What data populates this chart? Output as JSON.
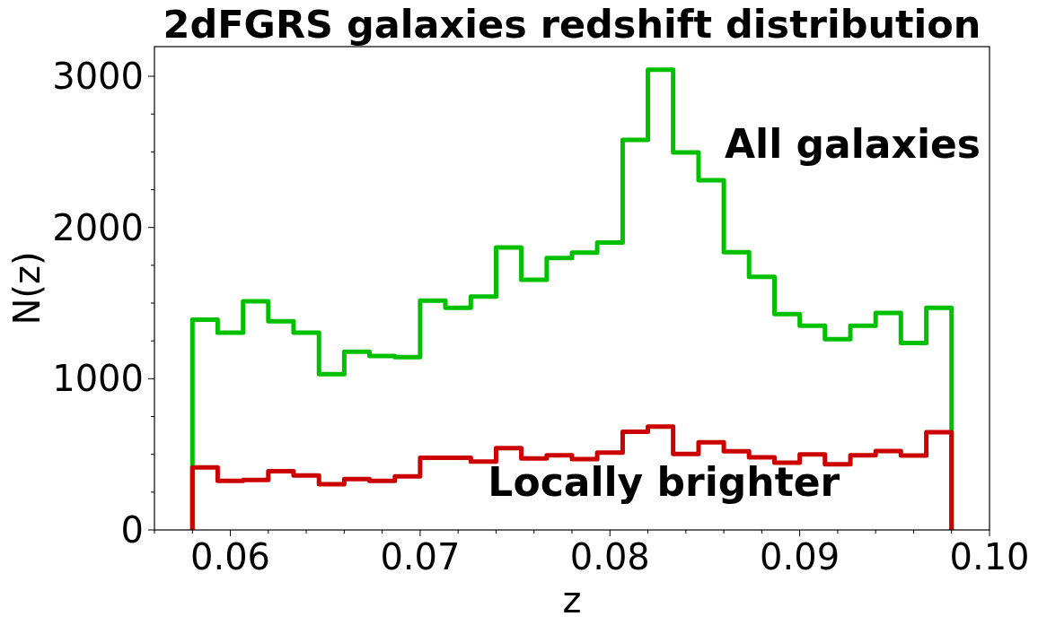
{
  "chart_data": {
    "type": "histogram",
    "title": "2dFGRS galaxies redshift distribution",
    "xlabel": "z",
    "ylabel": "N(z)",
    "bins": [
      0.058,
      0.05933,
      0.06067,
      0.062,
      0.06333,
      0.06467,
      0.066,
      0.06733,
      0.06867,
      0.07,
      0.07133,
      0.07267,
      0.074,
      0.07533,
      0.07667,
      0.078,
      0.07933,
      0.08067,
      0.082,
      0.08333,
      0.08467,
      0.086,
      0.08733,
      0.08867,
      0.09,
      0.09133,
      0.09267,
      0.094,
      0.09533,
      0.09667,
      0.098
    ],
    "series": [
      {
        "name": "All galaxies",
        "color": "#00c000",
        "values": [
          1391,
          1304,
          1512,
          1380,
          1304,
          1030,
          1179,
          1151,
          1143,
          1516,
          1469,
          1543,
          1868,
          1654,
          1798,
          1834,
          1900,
          2580,
          3044,
          2497,
          2313,
          1836,
          1673,
          1427,
          1351,
          1262,
          1351,
          1435,
          1236,
          1469
        ]
      },
      {
        "name": "Locally brighter",
        "color": "#cc0000",
        "values": [
          414,
          325,
          331,
          388,
          360,
          303,
          336,
          325,
          355,
          477,
          477,
          452,
          541,
          473,
          494,
          469,
          511,
          649,
          683,
          503,
          579,
          520,
          480,
          445,
          500,
          435,
          494,
          522,
          492,
          647
        ]
      }
    ],
    "xlim": [
      0.056,
      0.1
    ],
    "xticks": [
      {
        "value": 0.056,
        "label": null
      },
      {
        "value": 0.058,
        "label": null
      },
      {
        "value": 0.06,
        "label": "0.06"
      },
      {
        "value": 0.062,
        "label": null
      },
      {
        "value": 0.064,
        "label": null
      },
      {
        "value": 0.066,
        "label": null
      },
      {
        "value": 0.068,
        "label": null
      },
      {
        "value": 0.07,
        "label": "0.07"
      },
      {
        "value": 0.072,
        "label": null
      },
      {
        "value": 0.074,
        "label": null
      },
      {
        "value": 0.076,
        "label": null
      },
      {
        "value": 0.078,
        "label": null
      },
      {
        "value": 0.08,
        "label": "0.08"
      },
      {
        "value": 0.082,
        "label": null
      },
      {
        "value": 0.084,
        "label": null
      },
      {
        "value": 0.086,
        "label": null
      },
      {
        "value": 0.088,
        "label": null
      },
      {
        "value": 0.09,
        "label": "0.09"
      },
      {
        "value": 0.092,
        "label": null
      },
      {
        "value": 0.094,
        "label": null
      },
      {
        "value": 0.096,
        "label": null
      },
      {
        "value": 0.098,
        "label": null
      },
      {
        "value": 0.1,
        "label": "0.10"
      }
    ],
    "ylim": [
      0,
      3196
    ],
    "yticks": [
      0,
      {
        "value": 250,
        "label": null
      },
      {
        "value": 500,
        "label": null
      },
      {
        "value": 750,
        "label": null
      },
      1000,
      {
        "value": 1250,
        "label": null
      },
      {
        "value": 1500,
        "label": null
      },
      {
        "value": 1750,
        "label": null
      },
      2000,
      {
        "value": 2250,
        "label": null
      },
      {
        "value": 2500,
        "label": null
      },
      {
        "value": 2750,
        "label": null
      },
      3000
    ],
    "grid": false,
    "legend": false
  }
}
